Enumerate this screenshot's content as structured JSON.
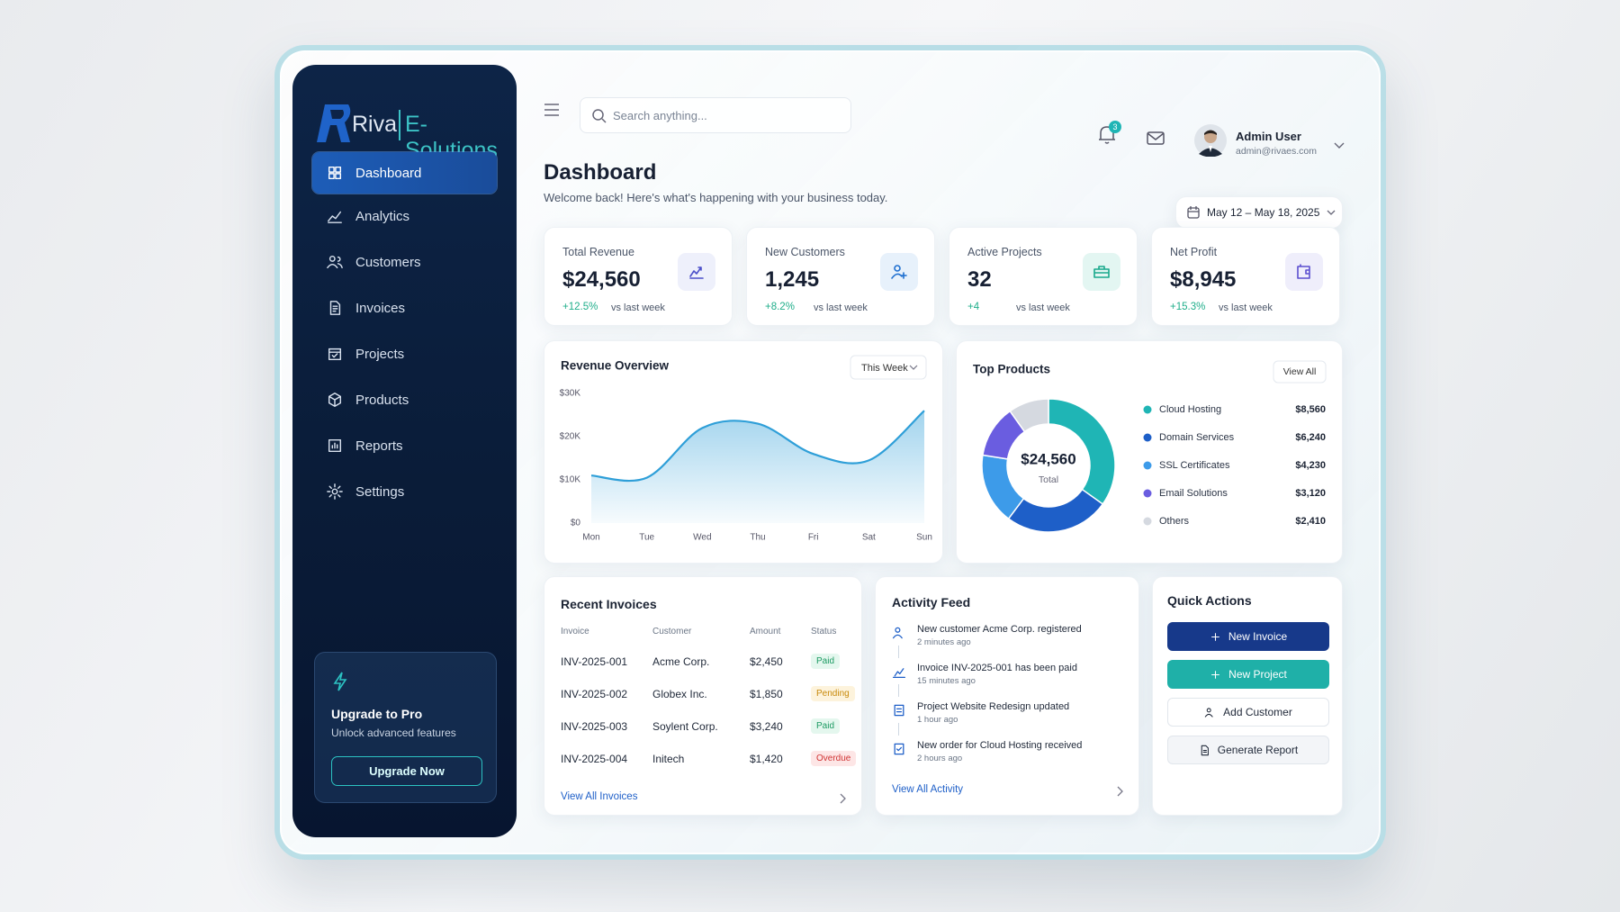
{
  "sidebar": {
    "brand": "Riva",
    "brand_suffix": "E-Solutions",
    "nav": [
      "Dashboard",
      "Analytics",
      "Customers",
      "Invoices",
      "Projects",
      "Products",
      "Reports",
      "Settings"
    ],
    "promo": {
      "title": "Upgrade to Pro",
      "subtitle": "Unlock advanced features",
      "button": "Upgrade Now"
    }
  },
  "topbar": {
    "search_placeholder": "Search anything...",
    "notification_count": 3,
    "user": {
      "name": "Admin User",
      "email": "admin@rivaes.com"
    }
  },
  "header": {
    "title": "Dashboard",
    "subtitle": "Welcome back! Here's what's happening with your business today.",
    "date_range": "May 12 – May 18, 2025"
  },
  "stats": [
    {
      "label": "Total Revenue",
      "value": "$24,560",
      "change": "+12.5%",
      "compare": "vs last week"
    },
    {
      "label": "New Customers",
      "value": "1,245",
      "change": "+8.2%",
      "compare": "vs last week"
    },
    {
      "label": "Active Projects",
      "value": "32",
      "change": "+4",
      "compare": "vs last week"
    },
    {
      "label": "Net Profit",
      "value": "$8,945",
      "change": "+15.3%",
      "compare": "vs last week"
    }
  ],
  "chart_data": [
    {
      "type": "line",
      "title": "Revenue Overview",
      "dropdown": "This Week",
      "categories": [
        "Mon",
        "Tue",
        "Wed",
        "Thu",
        "Fri",
        "Sat",
        "Sun"
      ],
      "series": [
        {
          "color": "#2f9fd8",
          "values": [
            11000,
            10500,
            22000,
            23000,
            16000,
            14500,
            26000
          ]
        }
      ],
      "ylim": [
        0,
        30000
      ],
      "yticks": [
        {
          "value": 0,
          "label": "$0"
        },
        {
          "value": 10000,
          "label": "$10K"
        },
        {
          "value": 20000,
          "label": "$20K"
        },
        {
          "value": 30000,
          "label": "$30K"
        }
      ],
      "grid": false
    },
    {
      "type": "pie",
      "title": "Top Products",
      "action": "View All",
      "center_label": "$24,560",
      "center_sublabel": "Total",
      "categories": [
        "Cloud Hosting",
        "Domain Services",
        "SSL Certificates",
        "Email Solutions",
        "Others"
      ],
      "values": [
        8560,
        6240,
        4230,
        3120,
        2410
      ],
      "value_labels": [
        "$8,560",
        "$6,240",
        "$4,230",
        "$3,120",
        "$2,410"
      ],
      "colors": [
        "#1fb5b5",
        "#1e5fc8",
        "#3d9be9",
        "#6a5de0",
        "#d5d9e0"
      ]
    }
  ],
  "invoices": {
    "title": "Recent Invoices",
    "columns": [
      "Invoice",
      "Customer",
      "Amount",
      "Status"
    ],
    "rows": [
      [
        "INV-2025-001",
        "Acme Corp.",
        "$2,450",
        "Paid"
      ],
      [
        "INV-2025-002",
        "Globex Inc.",
        "$1,850",
        "Pending"
      ],
      [
        "INV-2025-003",
        "Soylent Corp.",
        "$3,240",
        "Paid"
      ],
      [
        "INV-2025-004",
        "Initech",
        "$1,420",
        "Overdue"
      ]
    ],
    "link": "View All Invoices"
  },
  "activity": {
    "title": "Activity Feed",
    "items": [
      {
        "text": "New customer Acme Corp. registered",
        "time": "2 minutes ago"
      },
      {
        "text": "Invoice INV-2025-001 has been paid",
        "time": "15 minutes ago"
      },
      {
        "text": "Project Website Redesign updated",
        "time": "1 hour ago"
      },
      {
        "text": "New order for Cloud Hosting received",
        "time": "2 hours ago"
      }
    ],
    "link": "View All Activity"
  },
  "quick_actions": {
    "title": "Quick Actions",
    "buttons": [
      "New Invoice",
      "New Project",
      "Add Customer",
      "Generate Report"
    ]
  }
}
